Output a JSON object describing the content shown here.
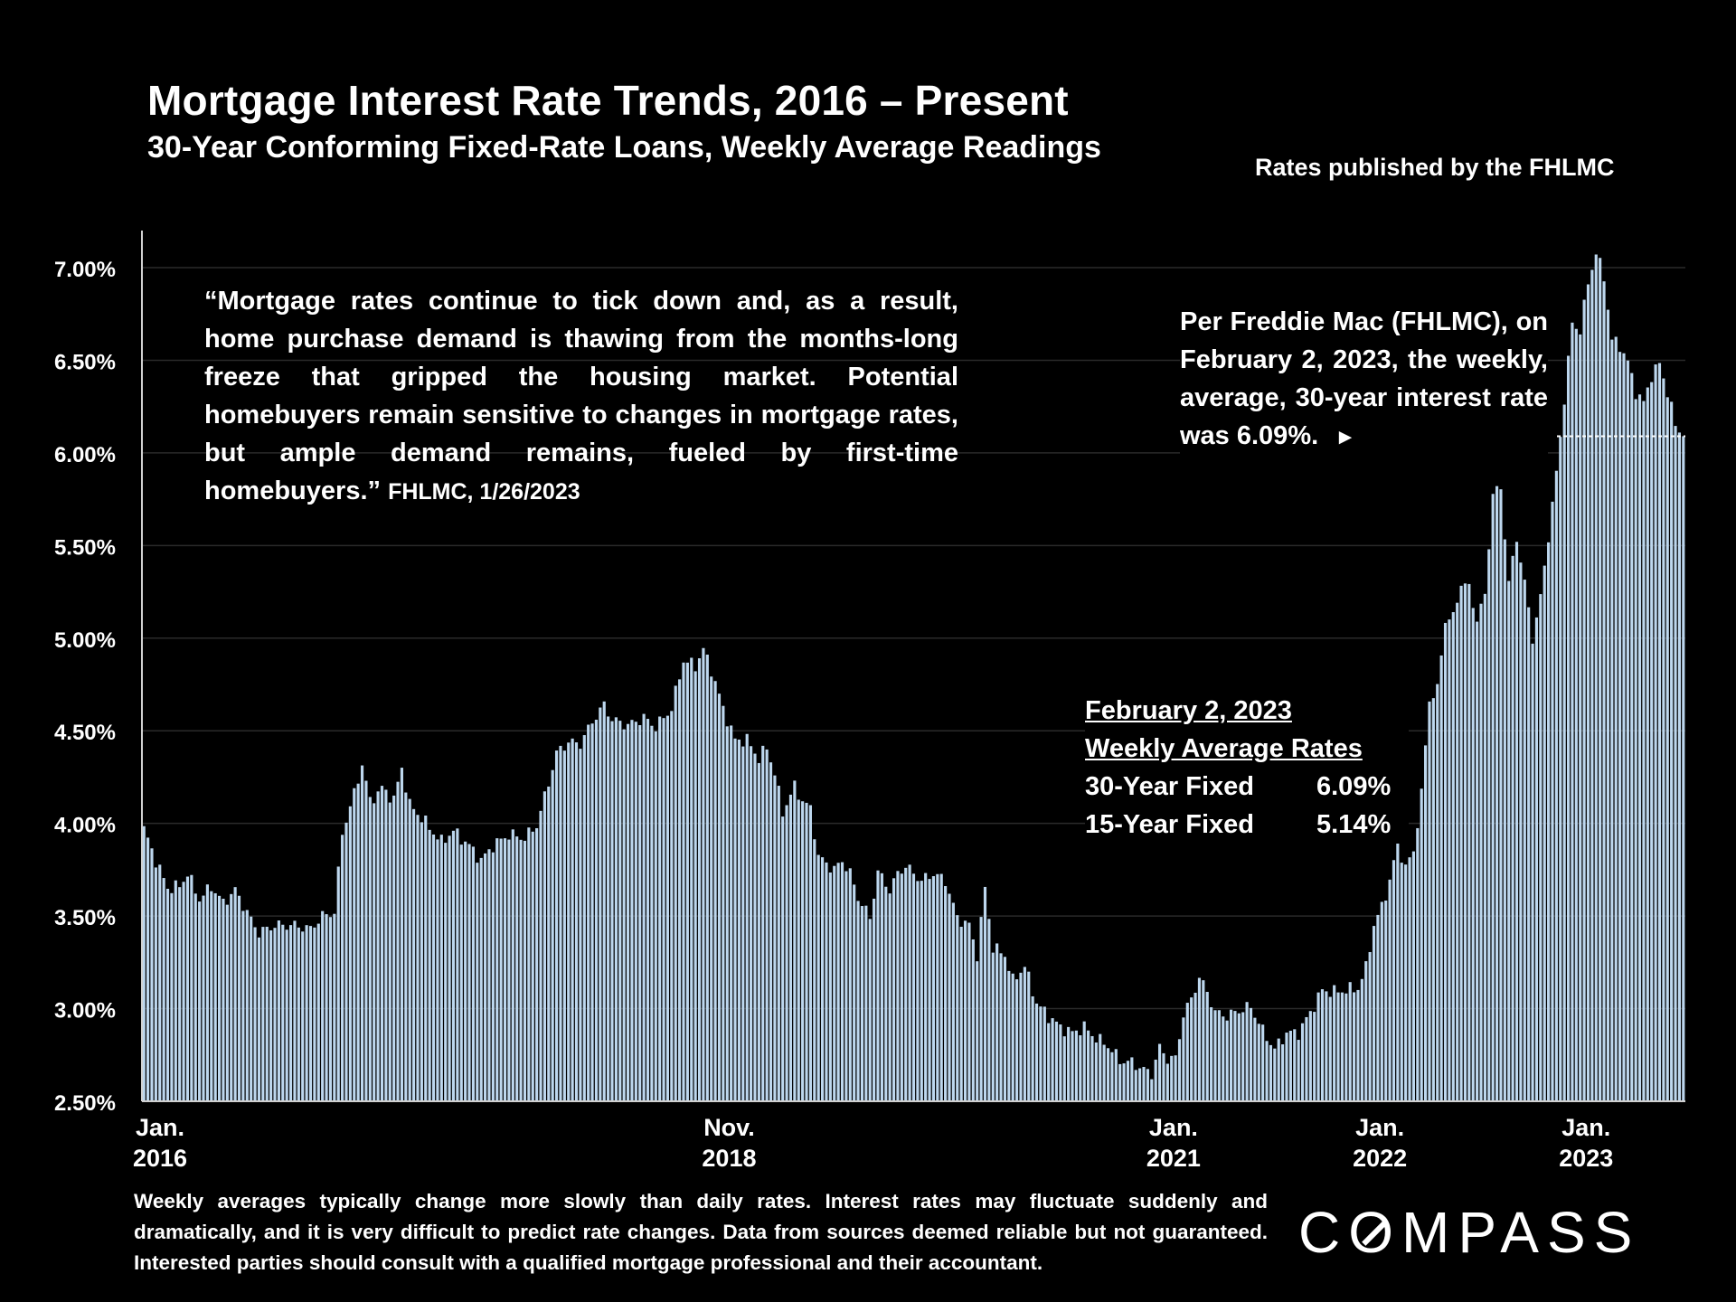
{
  "header": {
    "title": "Mortgage Interest Rate Trends, 2016 – Present",
    "subtitle": "30-Year Conforming Fixed-Rate Loans, Weekly Average Readings",
    "source": "Rates published by the FHLMC"
  },
  "quote": {
    "text": "“Mortgage rates continue to tick down and, as a result, home purchase demand is thawing from the months-long freeze that gripped the housing market. Potential homebuyers remain sensitive to changes in mortgage rates, but ample demand remains, fueled by first-time homebuyers.”",
    "cite": "FHLMC, 1/26/2023"
  },
  "callout": {
    "text": "Per Freddie Mac (FHLMC), on February 2, 2023, the weekly, average, 30-year interest rate was 6.09%.",
    "arrow": "►"
  },
  "rates_box": {
    "date": "February 2, 2023",
    "heading": "Weekly Average Rates",
    "rows": [
      {
        "label": "30-Year Fixed",
        "value": "6.09%"
      },
      {
        "label": "15-Year Fixed",
        "value": "5.14%"
      }
    ]
  },
  "footer": {
    "text": "Weekly averages typically change more slowly than daily rates. Interest rates may fluctuate suddenly and dramatically, and it is very difficult to predict rate changes. Data from sources deemed reliable but not guaranteed. Interested parties should consult with a qualified mortgage professional and their accountant."
  },
  "logo": {
    "text": "COMPASS"
  },
  "colors": {
    "bar": "#bdd7ee",
    "gridline": "#2a2a2a",
    "background": "#000000",
    "text": "#ffffff"
  },
  "chart_data": {
    "type": "bar",
    "title": "Mortgage Interest Rate Trends, 2016 – Present",
    "ylim": [
      2.5,
      7.0
    ],
    "y_ticks": [
      {
        "value": 2.5,
        "label": "2.50%"
      },
      {
        "value": 3.0,
        "label": "3.00%"
      },
      {
        "value": 3.5,
        "label": "3.50%"
      },
      {
        "value": 4.0,
        "label": "4.00%"
      },
      {
        "value": 4.5,
        "label": "4.50%"
      },
      {
        "value": 5.0,
        "label": "5.00%"
      },
      {
        "value": 5.5,
        "label": "5.50%"
      },
      {
        "value": 6.0,
        "label": "6.00%"
      },
      {
        "value": 6.5,
        "label": "6.50%"
      },
      {
        "value": 7.0,
        "label": "7.00%"
      }
    ],
    "x_ticks": [
      {
        "index": 0,
        "line1": "Jan.",
        "line2": "2016"
      },
      {
        "index": 148,
        "line1": "Nov.",
        "line2": "2018"
      },
      {
        "index": 260,
        "line1": "Jan.",
        "line2": "2021"
      },
      {
        "index": 312,
        "line1": "Jan.",
        "line2": "2022"
      },
      {
        "index": 364,
        "line1": "Jan.",
        "line2": "2023"
      }
    ],
    "keypoints": [
      [
        0,
        3.97
      ],
      [
        3,
        3.8
      ],
      [
        6,
        3.65
      ],
      [
        9,
        3.66
      ],
      [
        11,
        3.73
      ],
      [
        14,
        3.59
      ],
      [
        17,
        3.66
      ],
      [
        20,
        3.57
      ],
      [
        23,
        3.64
      ],
      [
        27,
        3.48
      ],
      [
        29,
        3.41
      ],
      [
        33,
        3.45
      ],
      [
        38,
        3.45
      ],
      [
        42,
        3.43
      ],
      [
        45,
        3.5
      ],
      [
        48,
        3.52
      ],
      [
        50,
        3.95
      ],
      [
        53,
        4.16
      ],
      [
        55,
        4.32
      ],
      [
        57,
        4.12
      ],
      [
        60,
        4.19
      ],
      [
        63,
        4.13
      ],
      [
        65,
        4.3
      ],
      [
        67,
        4.1
      ],
      [
        70,
        4.03
      ],
      [
        73,
        3.95
      ],
      [
        75,
        3.9
      ],
      [
        78,
        3.96
      ],
      [
        82,
        3.88
      ],
      [
        85,
        3.8
      ],
      [
        88,
        3.88
      ],
      [
        92,
        3.94
      ],
      [
        96,
        3.92
      ],
      [
        99,
        3.99
      ],
      [
        102,
        4.22
      ],
      [
        104,
        4.38
      ],
      [
        107,
        4.44
      ],
      [
        110,
        4.43
      ],
      [
        113,
        4.55
      ],
      [
        116,
        4.64
      ],
      [
        118,
        4.56
      ],
      [
        122,
        4.53
      ],
      [
        126,
        4.57
      ],
      [
        129,
        4.52
      ],
      [
        133,
        4.62
      ],
      [
        136,
        4.88
      ],
      [
        139,
        4.85
      ],
      [
        141,
        4.94
      ],
      [
        143,
        4.83
      ],
      [
        146,
        4.62
      ],
      [
        149,
        4.45
      ],
      [
        152,
        4.45
      ],
      [
        155,
        4.35
      ],
      [
        157,
        4.41
      ],
      [
        159,
        4.27
      ],
      [
        161,
        4.06
      ],
      [
        164,
        4.2
      ],
      [
        166,
        4.12
      ],
      [
        168,
        4.08
      ],
      [
        170,
        3.82
      ],
      [
        174,
        3.75
      ],
      [
        176,
        3.8
      ],
      [
        178,
        3.73
      ],
      [
        180,
        3.6
      ],
      [
        183,
        3.49
      ],
      [
        185,
        3.74
      ],
      [
        188,
        3.64
      ],
      [
        190,
        3.73
      ],
      [
        192,
        3.77
      ],
      [
        196,
        3.69
      ],
      [
        199,
        3.73
      ],
      [
        202,
        3.69
      ],
      [
        205,
        3.49
      ],
      [
        208,
        3.45
      ],
      [
        210,
        3.29
      ],
      [
        212,
        3.65
      ],
      [
        214,
        3.33
      ],
      [
        217,
        3.29
      ],
      [
        219,
        3.15
      ],
      [
        222,
        3.23
      ],
      [
        225,
        3.03
      ],
      [
        228,
        2.96
      ],
      [
        231,
        2.9
      ],
      [
        234,
        2.87
      ],
      [
        237,
        2.9
      ],
      [
        240,
        2.84
      ],
      [
        243,
        2.8
      ],
      [
        246,
        2.72
      ],
      [
        249,
        2.71
      ],
      [
        252,
        2.67
      ],
      [
        254,
        2.65
      ],
      [
        256,
        2.79
      ],
      [
        258,
        2.73
      ],
      [
        260,
        2.73
      ],
      [
        262,
        2.97
      ],
      [
        264,
        3.05
      ],
      [
        266,
        3.17
      ],
      [
        268,
        3.09
      ],
      [
        270,
        2.98
      ],
      [
        273,
        2.96
      ],
      [
        276,
        2.99
      ],
      [
        279,
        3.01
      ],
      [
        282,
        2.88
      ],
      [
        285,
        2.78
      ],
      [
        288,
        2.87
      ],
      [
        291,
        2.87
      ],
      [
        294,
        2.98
      ],
      [
        297,
        3.1
      ],
      [
        300,
        3.09
      ],
      [
        303,
        3.1
      ],
      [
        306,
        3.11
      ],
      [
        308,
        3.22
      ],
      [
        310,
        3.45
      ],
      [
        312,
        3.55
      ],
      [
        314,
        3.69
      ],
      [
        316,
        3.89
      ],
      [
        318,
        3.76
      ],
      [
        320,
        3.85
      ],
      [
        322,
        4.16
      ],
      [
        324,
        4.67
      ],
      [
        326,
        4.72
      ],
      [
        328,
        5.1
      ],
      [
        330,
        5.11
      ],
      [
        332,
        5.3
      ],
      [
        334,
        5.27
      ],
      [
        336,
        5.1
      ],
      [
        338,
        5.23
      ],
      [
        340,
        5.78
      ],
      [
        342,
        5.81
      ],
      [
        344,
        5.3
      ],
      [
        346,
        5.54
      ],
      [
        348,
        5.3
      ],
      [
        350,
        5.0
      ],
      [
        352,
        5.22
      ],
      [
        354,
        5.55
      ],
      [
        356,
        5.89
      ],
      [
        358,
        6.29
      ],
      [
        360,
        6.7
      ],
      [
        362,
        6.66
      ],
      [
        364,
        6.92
      ],
      [
        366,
        7.08
      ],
      [
        368,
        6.95
      ],
      [
        370,
        6.61
      ],
      [
        372,
        6.58
      ],
      [
        374,
        6.49
      ],
      [
        376,
        6.33
      ],
      [
        378,
        6.27
      ],
      [
        380,
        6.42
      ],
      [
        382,
        6.48
      ],
      [
        384,
        6.33
      ],
      [
        386,
        6.15
      ],
      [
        388,
        6.09
      ]
    ],
    "latest": {
      "value": 6.09,
      "label": "Feb 2, 2023"
    }
  }
}
